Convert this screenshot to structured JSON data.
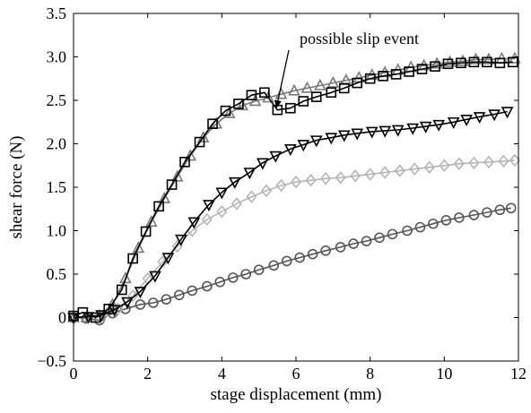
{
  "chart_data": {
    "type": "line",
    "title": "",
    "xlabel": "stage displacement (mm)",
    "ylabel": "shear force (N)",
    "xlim": [
      0,
      12
    ],
    "ylim": [
      -0.5,
      3.5
    ],
    "x_ticks": [
      0,
      2,
      4,
      6,
      8,
      10,
      12
    ],
    "y_ticks": [
      -0.5,
      0,
      0.5,
      1.0,
      1.5,
      2.0,
      2.5,
      3.0,
      3.5
    ],
    "x_tick_labels": [
      "0",
      "2",
      "4",
      "6",
      "8",
      "10",
      "12"
    ],
    "y_tick_labels": [
      "−0.5",
      "0",
      "0.5",
      "1.0",
      "1.5",
      "2.0",
      "2.5",
      "3.0",
      "3.5"
    ],
    "grid": false,
    "legend": "none",
    "annotation": {
      "text": "possible slip event",
      "points_to": [
        5.4,
        2.5
      ]
    },
    "series": [
      {
        "marker": "square",
        "color": "#000000",
        "x": [
          0,
          0.25,
          0.6,
          0.95,
          1.3,
          1.6,
          1.95,
          2.3,
          2.65,
          3.0,
          3.4,
          3.75,
          4.1,
          4.45,
          4.8,
          5.15,
          5.5,
          5.85,
          6.2,
          6.55,
          6.95,
          7.3,
          7.65,
          8.0,
          8.35,
          8.7,
          9.05,
          9.4,
          9.75,
          10.1,
          10.45,
          10.8,
          11.15,
          11.5,
          11.85
        ],
        "y": [
          0.02,
          0.06,
          0.0,
          0.1,
          0.32,
          0.68,
          0.99,
          1.28,
          1.53,
          1.79,
          2.02,
          2.23,
          2.38,
          2.46,
          2.56,
          2.59,
          2.39,
          2.41,
          2.49,
          2.54,
          2.59,
          2.64,
          2.7,
          2.75,
          2.78,
          2.8,
          2.83,
          2.86,
          2.89,
          2.92,
          2.93,
          2.94,
          2.94,
          2.93,
          2.94
        ]
      },
      {
        "marker": "triangle-up",
        "color": "#7a7a7a",
        "x": [
          0,
          0.35,
          0.7,
          1.05,
          1.4,
          1.75,
          2.1,
          2.45,
          2.8,
          3.15,
          3.5,
          3.85,
          4.2,
          4.55,
          4.9,
          5.25,
          5.6,
          5.95,
          6.3,
          6.65,
          7.0,
          7.35,
          7.7,
          8.05,
          8.4,
          8.75,
          9.1,
          9.45,
          9.8,
          10.15,
          10.5,
          10.85,
          11.2,
          11.55,
          11.9
        ],
        "y": [
          0.0,
          0.0,
          0.02,
          0.15,
          0.45,
          0.8,
          1.1,
          1.37,
          1.62,
          1.86,
          2.07,
          2.23,
          2.35,
          2.44,
          2.49,
          2.53,
          2.57,
          2.61,
          2.64,
          2.67,
          2.7,
          2.73,
          2.76,
          2.79,
          2.82,
          2.85,
          2.88,
          2.9,
          2.92,
          2.94,
          2.95,
          2.97,
          2.97,
          2.98,
          2.98
        ]
      },
      {
        "marker": "triangle-down",
        "color": "#000000",
        "x": [
          0,
          0.4,
          0.75,
          1.1,
          1.45,
          1.8,
          2.2,
          2.55,
          2.9,
          3.25,
          3.65,
          4.0,
          4.35,
          4.75,
          5.1,
          5.45,
          5.85,
          6.2,
          6.55,
          6.95,
          7.3,
          7.65,
          8.05,
          8.4,
          8.75,
          9.15,
          9.5,
          9.85,
          10.25,
          10.6,
          10.95,
          11.35,
          11.7
        ],
        "y": [
          0.0,
          0.01,
          0.03,
          0.09,
          0.18,
          0.3,
          0.48,
          0.69,
          0.9,
          1.1,
          1.3,
          1.44,
          1.56,
          1.67,
          1.78,
          1.86,
          1.94,
          1.99,
          2.04,
          2.07,
          2.1,
          2.12,
          2.14,
          2.15,
          2.16,
          2.18,
          2.2,
          2.22,
          2.25,
          2.28,
          2.31,
          2.34,
          2.37
        ]
      },
      {
        "marker": "diamond",
        "color": "#b5b5b5",
        "x": [
          0,
          0.4,
          0.8,
          1.2,
          1.6,
          2.0,
          2.4,
          2.8,
          3.2,
          3.6,
          4.0,
          4.4,
          4.8,
          5.2,
          5.6,
          6.0,
          6.4,
          6.8,
          7.2,
          7.6,
          8.0,
          8.4,
          8.8,
          9.2,
          9.6,
          10.0,
          10.4,
          10.8,
          11.2,
          11.6,
          11.9
        ],
        "y": [
          0.0,
          0.0,
          0.02,
          0.1,
          0.25,
          0.45,
          0.64,
          0.82,
          1.0,
          1.13,
          1.22,
          1.31,
          1.39,
          1.46,
          1.52,
          1.56,
          1.58,
          1.6,
          1.61,
          1.63,
          1.65,
          1.67,
          1.69,
          1.71,
          1.73,
          1.75,
          1.77,
          1.78,
          1.79,
          1.8,
          1.81
        ]
      },
      {
        "marker": "circle",
        "color": "#555555",
        "x": [
          0,
          0.35,
          0.7,
          1.05,
          1.4,
          1.8,
          2.15,
          2.5,
          2.85,
          3.2,
          3.6,
          3.95,
          4.3,
          4.65,
          5.0,
          5.4,
          5.75,
          6.1,
          6.45,
          6.8,
          7.2,
          7.55,
          7.9,
          8.25,
          8.6,
          9.0,
          9.35,
          9.7,
          10.05,
          10.4,
          10.8,
          11.15,
          11.5,
          11.8
        ],
        "y": [
          0.0,
          -0.01,
          -0.03,
          0.05,
          0.1,
          0.15,
          0.17,
          0.21,
          0.26,
          0.31,
          0.36,
          0.41,
          0.46,
          0.5,
          0.55,
          0.6,
          0.65,
          0.69,
          0.73,
          0.77,
          0.81,
          0.85,
          0.88,
          0.92,
          0.96,
          1.0,
          1.04,
          1.08,
          1.12,
          1.15,
          1.18,
          1.21,
          1.24,
          1.26
        ]
      }
    ]
  }
}
